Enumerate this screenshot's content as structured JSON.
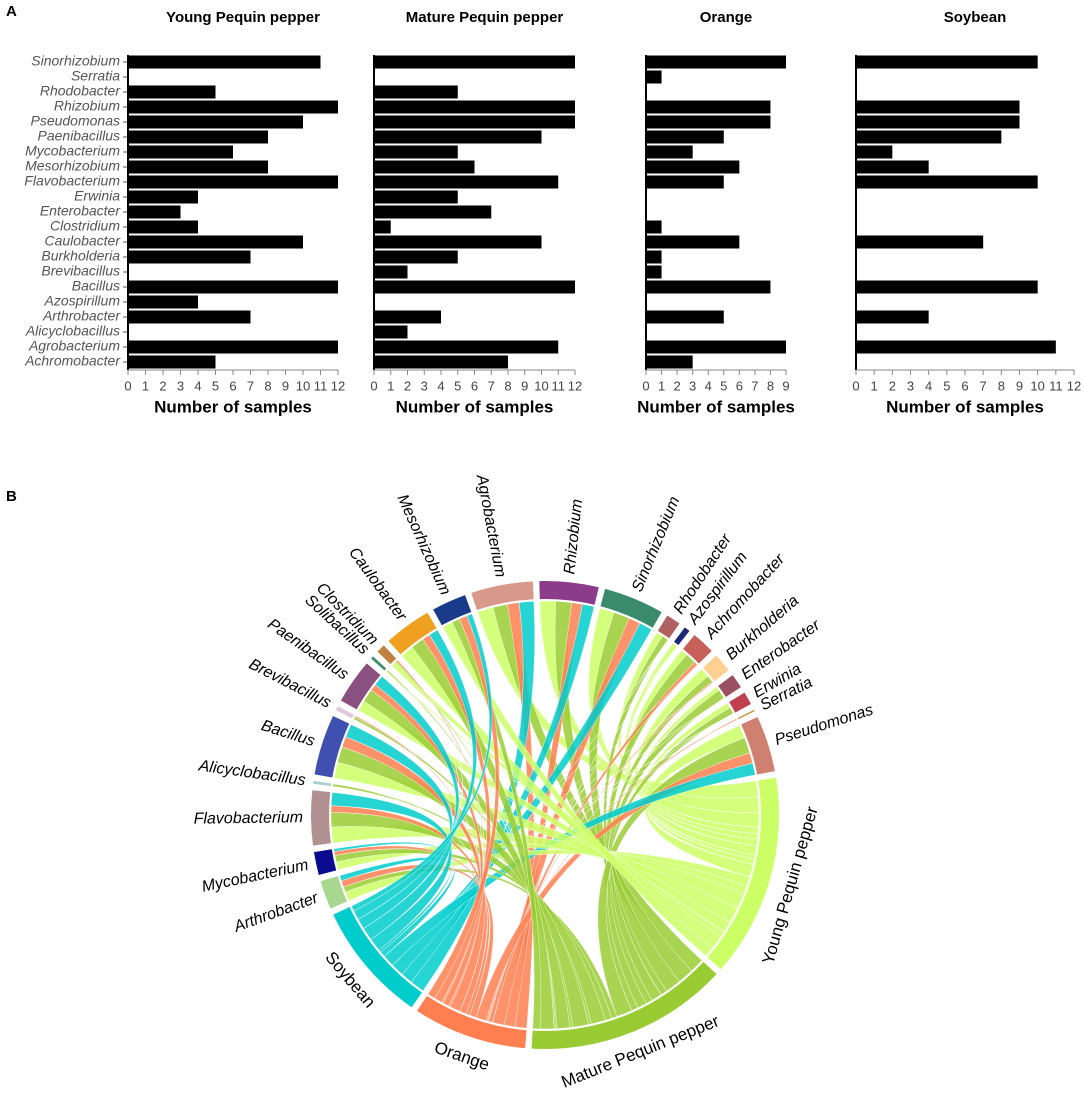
{
  "chart_data": [
    {
      "type": "bar",
      "label": "A",
      "orientation": "horizontal",
      "xlabel": "Number of samples",
      "categories": [
        "Sinorhizobium",
        "Serratia",
        "Rhodobacter",
        "Rhizobium",
        "Pseudomonas",
        "Paenibacillus",
        "Mycobacterium",
        "Mesorhizobium",
        "Flavobacterium",
        "Erwinia",
        "Enterobacter",
        "Clostridium",
        "Caulobacter",
        "Burkholderia",
        "Brevibacillus",
        "Bacillus",
        "Azospirillum",
        "Arthrobacter",
        "Alicyclobacillus",
        "Agrobacterium",
        "Achromobacter"
      ],
      "series": [
        {
          "name": "Young Pequin pepper",
          "color": "#000000",
          "xlim": [
            0,
            12
          ],
          "xticks": [
            0,
            1,
            2,
            3,
            4,
            5,
            6,
            7,
            8,
            9,
            10,
            11,
            12
          ],
          "values": [
            11,
            0,
            5,
            12,
            10,
            8,
            6,
            8,
            12,
            4,
            3,
            4,
            10,
            7,
            0,
            12,
            4,
            7,
            0,
            12,
            5
          ]
        },
        {
          "name": "Mature Pequin pepper",
          "color": "#000000",
          "xlim": [
            0,
            12
          ],
          "xticks": [
            0,
            1,
            2,
            3,
            4,
            5,
            6,
            7,
            8,
            9,
            10,
            11,
            12
          ],
          "values": [
            12,
            0,
            5,
            12,
            12,
            10,
            5,
            6,
            11,
            5,
            7,
            1,
            10,
            5,
            2,
            12,
            0,
            4,
            2,
            11,
            8
          ]
        },
        {
          "name": "Orange",
          "color": "#000000",
          "xlim": [
            0,
            9
          ],
          "xticks": [
            0,
            1,
            2,
            3,
            4,
            5,
            6,
            7,
            8,
            9
          ],
          "values": [
            9,
            1,
            0,
            8,
            8,
            5,
            3,
            6,
            5,
            0,
            0,
            1,
            6,
            1,
            1,
            8,
            0,
            5,
            0,
            9,
            3
          ]
        },
        {
          "name": "Soybean",
          "color": "#000000",
          "xlim": [
            0,
            12
          ],
          "xticks": [
            0,
            1,
            2,
            3,
            4,
            5,
            6,
            7,
            8,
            9,
            10,
            11,
            12
          ],
          "values": [
            10,
            0,
            0,
            9,
            9,
            8,
            2,
            4,
            10,
            0,
            0,
            0,
            7,
            0,
            0,
            10,
            0,
            4,
            0,
            11,
            0
          ]
        }
      ]
    },
    {
      "type": "chord",
      "label": "B",
      "hosts": [
        {
          "name": "Young Pequin pepper",
          "color": "#ccff66"
        },
        {
          "name": "Mature Pequin pepper",
          "color": "#99cc33"
        },
        {
          "name": "Orange",
          "color": "#ff7f50"
        },
        {
          "name": "Soybean",
          "color": "#00cccc"
        }
      ],
      "genera": [
        {
          "name": "Agrobacterium",
          "color": "#d9998a",
          "values": [
            12,
            11,
            9,
            11
          ]
        },
        {
          "name": "Rhizobium",
          "color": "#8b3d8b",
          "values": [
            12,
            12,
            8,
            9
          ]
        },
        {
          "name": "Sinorhizobium",
          "color": "#3a8a6e",
          "values": [
            11,
            12,
            9,
            10
          ]
        },
        {
          "name": "Rhodobacter",
          "color": "#b06060",
          "values": [
            5,
            5,
            0,
            0
          ]
        },
        {
          "name": "Azospirillum",
          "color": "#1a2a7a",
          "values": [
            4,
            0,
            0,
            0
          ]
        },
        {
          "name": "Achromobacter",
          "color": "#c8605a",
          "values": [
            5,
            8,
            3,
            0
          ]
        },
        {
          "name": "Burkholderia",
          "color": "#ffd090",
          "values": [
            7,
            5,
            1,
            0
          ]
        },
        {
          "name": "Enterobacter",
          "color": "#9a5060",
          "values": [
            3,
            7,
            0,
            0
          ]
        },
        {
          "name": "Erwinia",
          "color": "#c04050",
          "values": [
            4,
            5,
            0,
            0
          ]
        },
        {
          "name": "Serratia",
          "color": "#c89040",
          "values": [
            0,
            0,
            1,
            0
          ]
        },
        {
          "name": "Pseudomonas",
          "color": "#d08070",
          "values": [
            10,
            12,
            8,
            9
          ]
        },
        {
          "name": "Arthrobacter",
          "color": "#a8d890",
          "values": [
            7,
            4,
            5,
            4
          ]
        },
        {
          "name": "Mycobacterium",
          "color": "#0a0a90",
          "values": [
            6,
            5,
            3,
            2
          ]
        },
        {
          "name": "Flavobacterium",
          "color": "#b09090",
          "values": [
            12,
            11,
            5,
            10
          ]
        },
        {
          "name": "Alicyclobacillus",
          "color": "#a8d0d0",
          "values": [
            0,
            2,
            0,
            0
          ]
        },
        {
          "name": "Bacillus",
          "color": "#4050b0",
          "values": [
            12,
            12,
            8,
            10
          ]
        },
        {
          "name": "Brevibacillus",
          "color": "#e0c8d8",
          "values": [
            0,
            2,
            1,
            0
          ]
        },
        {
          "name": "Paenibacillus",
          "color": "#8a5080",
          "values": [
            8,
            10,
            5,
            8
          ]
        },
        {
          "name": "Solibacillus",
          "color": "#40906a",
          "values": [
            1,
            1,
            0,
            0
          ]
        },
        {
          "name": "Clostridium",
          "color": "#c08040",
          "values": [
            4,
            1,
            1,
            0
          ]
        },
        {
          "name": "Caulobacter",
          "color": "#f0a020",
          "values": [
            10,
            10,
            6,
            7
          ]
        },
        {
          "name": "Mesorhizobium",
          "color": "#1a3a8a",
          "values": [
            8,
            6,
            6,
            4
          ]
        }
      ]
    }
  ]
}
